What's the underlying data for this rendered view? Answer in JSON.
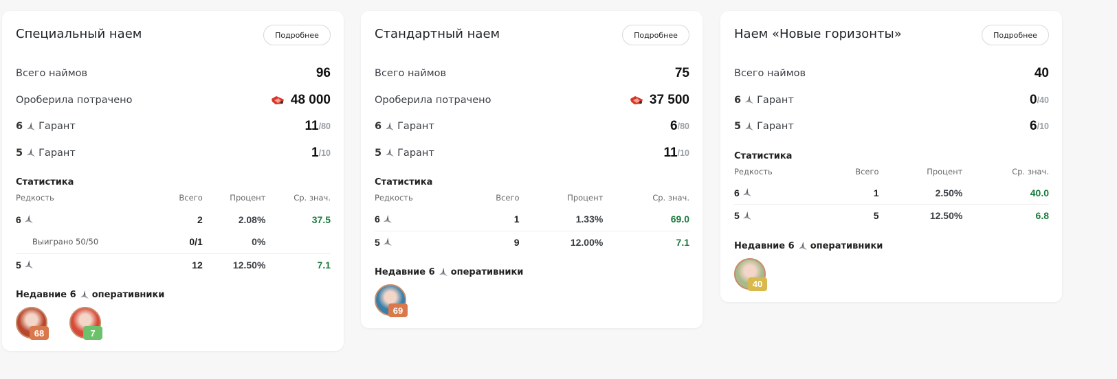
{
  "colors": {
    "green": "#1a7a3c",
    "badge_orange": "#d9784a",
    "badge_green": "#6cc26a",
    "badge_gold": "#d9b84e"
  },
  "cards": [
    {
      "title": "Специальный наем",
      "more": "Подробнее",
      "total_label": "Всего наймов",
      "total": "96",
      "spent_label": "Ороберила потрачено",
      "spent": "48 000",
      "spent_icon": "orundum-icon",
      "guarantees": [
        {
          "rarity": "6",
          "label": "Гарант",
          "value": "11",
          "max": "/80"
        },
        {
          "rarity": "5",
          "label": "Гарант",
          "value": "1",
          "max": "/10"
        }
      ],
      "stats_title": "Статистика",
      "headers": [
        "Редкость",
        "Всего",
        "Процент",
        "Ср. знач."
      ],
      "rows": [
        {
          "rarity": "6",
          "total": "2",
          "pct": "2.08%",
          "avg": "37.5"
        },
        {
          "sub": true,
          "label": "Выиграно 50/50",
          "total": "0/1",
          "pct": "0%",
          "avg": ""
        },
        {
          "rarity": "5",
          "total": "12",
          "pct": "12.50%",
          "avg": "7.1"
        }
      ],
      "recent_title_a": "Недавние 6",
      "recent_title_b": "оперативники",
      "recent": [
        {
          "value": "68",
          "color": "#d9784a",
          "bg": "#b8472e"
        },
        {
          "value": "7",
          "color": "#6cc26a",
          "bg": "#d84a3a"
        }
      ]
    },
    {
      "title": "Стандартный наем",
      "more": "Подробнее",
      "total_label": "Всего наймов",
      "total": "75",
      "spent_label": "Ороберила потрачено",
      "spent": "37 500",
      "spent_icon": "orundum-icon",
      "guarantees": [
        {
          "rarity": "6",
          "label": "Гарант",
          "value": "6",
          "max": "/80"
        },
        {
          "rarity": "5",
          "label": "Гарант",
          "value": "11",
          "max": "/10"
        }
      ],
      "stats_title": "Статистика",
      "headers": [
        "Редкость",
        "Всего",
        "Процент",
        "Ср. знач."
      ],
      "rows": [
        {
          "rarity": "6",
          "total": "1",
          "pct": "1.33%",
          "avg": "69.0"
        },
        {
          "rarity": "5",
          "total": "9",
          "pct": "12.00%",
          "avg": "7.1"
        }
      ],
      "recent_title_a": "Недавние 6",
      "recent_title_b": "оперативники",
      "recent": [
        {
          "value": "69",
          "color": "#d9784a",
          "bg": "#3a7fa8"
        }
      ]
    },
    {
      "title": "Наем «Новые горизонты»",
      "more": "Подробнее",
      "total_label": "Всего наймов",
      "total": "40",
      "guarantees": [
        {
          "rarity": "6",
          "label": "Гарант",
          "value": "0",
          "max": "/40"
        },
        {
          "rarity": "5",
          "label": "Гарант",
          "value": "6",
          "max": "/10"
        }
      ],
      "stats_title": "Статистика",
      "headers": [
        "Редкость",
        "Всего",
        "Процент",
        "Ср. знач."
      ],
      "rows": [
        {
          "rarity": "6",
          "total": "1",
          "pct": "2.50%",
          "avg": "40.0"
        },
        {
          "rarity": "5",
          "total": "5",
          "pct": "12.50%",
          "avg": "6.8"
        }
      ],
      "recent_title_a": "Недавние 6",
      "recent_title_b": "оперативники",
      "recent": [
        {
          "value": "40",
          "color": "#d9b84e",
          "bg": "#a9b98a"
        }
      ]
    }
  ]
}
